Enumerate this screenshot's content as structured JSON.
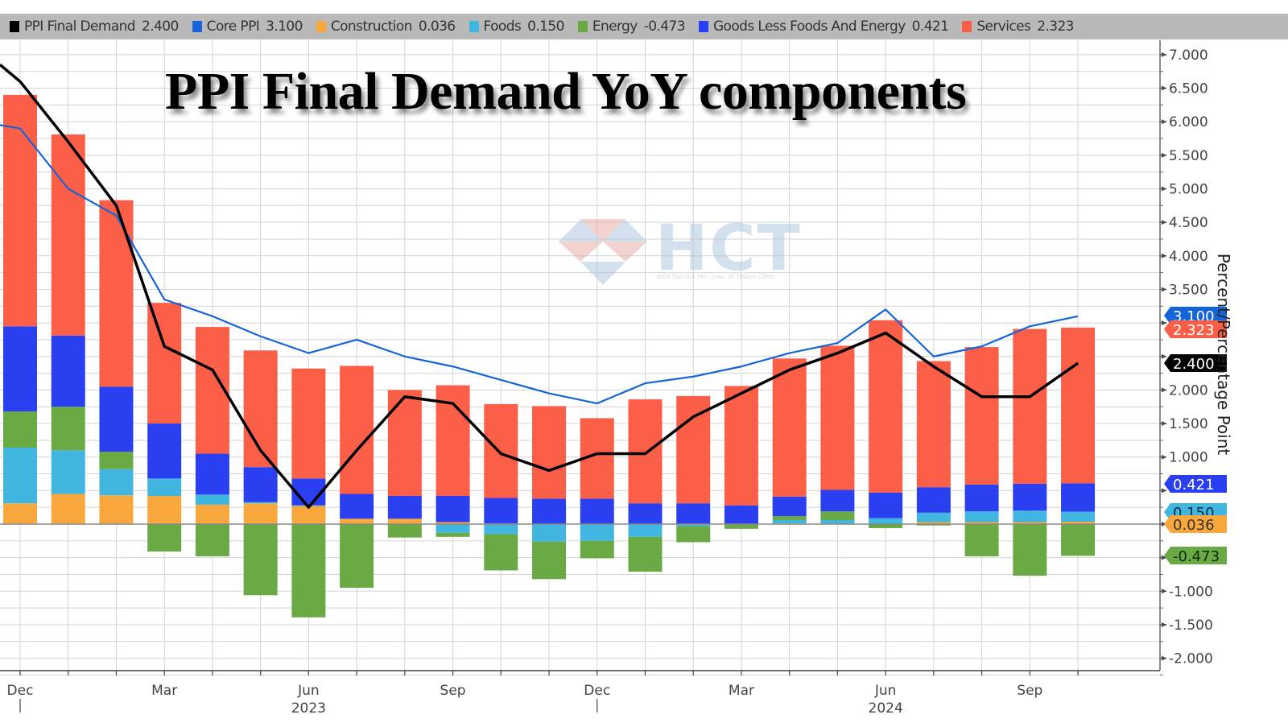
{
  "legend": [
    {
      "label": "PPI Final Demand",
      "value": "2.400",
      "color": "#000000"
    },
    {
      "label": "Core PPI",
      "value": "3.100",
      "color": "#1565d8"
    },
    {
      "label": "Construction",
      "value": "0.036",
      "color": "#f8a83c"
    },
    {
      "label": "Foods",
      "value": "0.150",
      "color": "#41b6e0"
    },
    {
      "label": "Energy",
      "value": "-0.473",
      "color": "#6aaa45"
    },
    {
      "label": "Goods Less Foods And Energy",
      "value": "0.421",
      "color": "#2a3ff0"
    },
    {
      "label": "Services",
      "value": "2.323",
      "color": "#fb5f48"
    }
  ],
  "title": "PPI Final Demand YoY components",
  "y_axis_label": "Percent/Percentage Point",
  "watermark": {
    "text": "HCT",
    "subtext": "KIẾN TẠO GIÁ TRỊ - CHIA SẺ THÀNH CÔNG"
  },
  "end_labels": [
    {
      "text": "3.100",
      "value": 3.1,
      "bg": "#1565d8",
      "fg": "#ffffff"
    },
    {
      "text": "2.323",
      "value": 2.9,
      "bg": "#fb5f48",
      "fg": "#ffffff"
    },
    {
      "text": "2.400",
      "value": 2.4,
      "bg": "#000000",
      "fg": "#ffffff"
    },
    {
      "text": "0.421",
      "value": 0.6,
      "bg": "#2a3ff0",
      "fg": "#ffffff"
    },
    {
      "text": "0.150",
      "value": 0.18,
      "bg": "#41b6e0",
      "fg": "#0a2a40"
    },
    {
      "text": "0.036",
      "value": 0.0,
      "bg": "#f8a83c",
      "fg": "#333333"
    },
    {
      "text": "-0.473",
      "value": -0.47,
      "bg": "#6aaa45",
      "fg": "#0d2a05"
    }
  ],
  "x_axis": {
    "tick_labels": [
      {
        "label": "Dec",
        "index": 0
      },
      {
        "label": "Mar",
        "index": 3
      },
      {
        "label": "Jun",
        "index": 6
      },
      {
        "label": "Sep",
        "index": 9
      },
      {
        "label": "Dec",
        "index": 12
      },
      {
        "label": "Mar",
        "index": 15
      },
      {
        "label": "Jun",
        "index": 18
      },
      {
        "label": "Sep",
        "index": 21
      }
    ],
    "year_labels": [
      {
        "label": "2023",
        "index": 6
      },
      {
        "label": "2024",
        "index": 18
      }
    ]
  },
  "chart_data": {
    "type": "bar",
    "title": "PPI Final Demand YoY components",
    "xlabel": "",
    "ylabel": "Percent/Percentage Point",
    "ylim": [
      -2.0,
      7.0
    ],
    "yticks": [
      7.0,
      6.5,
      6.0,
      5.5,
      5.0,
      4.5,
      4.0,
      3.5,
      3.0,
      2.5,
      2.0,
      1.5,
      1.0,
      0.5,
      0.0,
      -0.5,
      -1.0,
      -1.5,
      -2.0
    ],
    "ytick_labels": [
      "7.000",
      "6.500",
      "6.000",
      "5.500",
      "5.000",
      "4.500",
      "4.000",
      "3.500",
      "",
      "",
      "2.000",
      "1.500",
      "1.000",
      "",
      "",
      "",
      "-1.000",
      "-1.500",
      "-2.000"
    ],
    "grid": true,
    "legend_position": "top",
    "stacked": true,
    "categories": [
      "Dec 2022",
      "Jan 2023",
      "Feb 2023",
      "Mar 2023",
      "Apr 2023",
      "May 2023",
      "Jun 2023",
      "Jul 2023",
      "Aug 2023",
      "Sep 2023",
      "Oct 2023",
      "Nov 2023",
      "Dec 2023",
      "Jan 2024",
      "Feb 2024",
      "Mar 2024",
      "Apr 2024",
      "May 2024",
      "Jun 2024",
      "Jul 2024",
      "Aug 2024",
      "Sep 2024",
      "Oct 2024"
    ],
    "series": [
      {
        "name": "Construction",
        "kind": "bar",
        "color": "#f8a83c",
        "values": [
          0.31,
          0.45,
          0.43,
          0.42,
          0.29,
          0.31,
          0.27,
          0.08,
          0.08,
          0.03,
          0.01,
          0.0,
          0.0,
          0.0,
          -0.01,
          0.0,
          0.01,
          0.0,
          0.0,
          0.03,
          0.03,
          0.03,
          0.036
        ]
      },
      {
        "name": "Foods",
        "kind": "bar",
        "color": "#41b6e0",
        "values": [
          0.83,
          0.65,
          0.39,
          0.26,
          0.15,
          0.02,
          0.01,
          0.0,
          0.0,
          -0.13,
          -0.15,
          -0.26,
          -0.25,
          -0.19,
          -0.02,
          0.0,
          0.05,
          0.06,
          0.09,
          0.14,
          0.16,
          0.17,
          0.15
        ]
      },
      {
        "name": "Energy",
        "kind": "bar",
        "color": "#6aaa45",
        "values": [
          0.54,
          0.65,
          0.26,
          -0.41,
          -0.48,
          -1.06,
          -1.39,
          -0.95,
          -0.2,
          -0.06,
          -0.54,
          -0.56,
          -0.26,
          -0.52,
          -0.24,
          -0.07,
          0.06,
          0.13,
          -0.06,
          -0.02,
          -0.48,
          -0.77,
          -0.473
        ]
      },
      {
        "name": "Goods Less Foods And Energy",
        "kind": "bar",
        "color": "#2a3ff0",
        "values": [
          1.27,
          1.06,
          0.97,
          0.82,
          0.61,
          0.52,
          0.4,
          0.37,
          0.34,
          0.39,
          0.38,
          0.38,
          0.38,
          0.31,
          0.31,
          0.28,
          0.29,
          0.32,
          0.38,
          0.38,
          0.4,
          0.4,
          0.421
        ]
      },
      {
        "name": "Services",
        "kind": "bar",
        "color": "#fb5f48",
        "values": [
          3.45,
          3.0,
          2.78,
          1.8,
          1.89,
          1.74,
          1.64,
          1.91,
          1.58,
          1.65,
          1.4,
          1.38,
          1.2,
          1.55,
          1.6,
          1.78,
          2.06,
          2.15,
          2.57,
          1.88,
          2.05,
          2.31,
          2.323
        ]
      },
      {
        "name": "PPI Final Demand",
        "kind": "line",
        "color": "#000000",
        "values": [
          6.6,
          5.7,
          4.75,
          2.65,
          2.3,
          1.1,
          0.25,
          1.1,
          1.9,
          1.8,
          1.05,
          0.8,
          1.05,
          1.05,
          1.6,
          1.95,
          2.3,
          2.55,
          2.85,
          2.35,
          1.9,
          1.9,
          2.4
        ]
      },
      {
        "name": "Core PPI",
        "kind": "line",
        "color": "#1565d8",
        "values": [
          5.9,
          5.0,
          4.6,
          3.35,
          3.1,
          2.8,
          2.55,
          2.75,
          2.5,
          2.35,
          2.15,
          1.95,
          1.8,
          2.1,
          2.2,
          2.35,
          2.55,
          2.7,
          3.2,
          2.5,
          2.65,
          2.95,
          3.1
        ]
      }
    ]
  }
}
